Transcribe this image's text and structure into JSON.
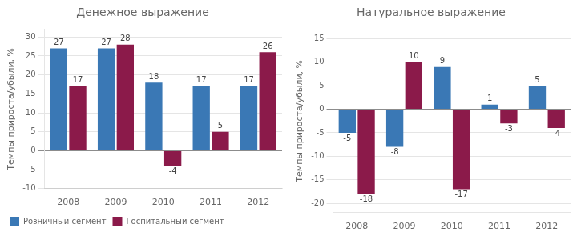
{
  "chart_data": [
    {
      "type": "bar",
      "title": "Денежное выражение",
      "y_label": "Темпы прироста/убыли, %",
      "categories": [
        "2008",
        "2009",
        "2010",
        "2011",
        "2012"
      ],
      "series": [
        {
          "name": "Розничный сегмент",
          "color": "#3a78b5",
          "values": [
            27,
            27,
            18,
            17,
            17
          ]
        },
        {
          "name": "Госпитальный сегмент",
          "color": "#8b1a4a",
          "values": [
            17,
            28,
            -4,
            5,
            26
          ]
        }
      ],
      "ylim": [
        -10,
        32
      ],
      "yticks": [
        -10,
        -5,
        0,
        5,
        10,
        15,
        20,
        25,
        30
      ],
      "grid": true,
      "data_labels": true,
      "legend": "lower left"
    },
    {
      "type": "bar",
      "title": "Натуральное выражение",
      "y_label": "Темпы прироста/убыли, %",
      "categories": [
        "2008",
        "2009",
        "2010",
        "2011",
        "2012"
      ],
      "series": [
        {
          "name": "Розничный сегмент",
          "color": "#3a78b5",
          "values": [
            -5,
            -8,
            9,
            1,
            5
          ]
        },
        {
          "name": "Госпитальный сегмент",
          "color": "#8b1a4a",
          "values": [
            -18,
            10,
            -17,
            -3,
            -4
          ]
        }
      ],
      "ylim": [
        -22,
        17
      ],
      "yticks": [
        -20,
        -15,
        -10,
        -5,
        0,
        5,
        10,
        15
      ],
      "grid": true,
      "data_labels": true
    }
  ]
}
